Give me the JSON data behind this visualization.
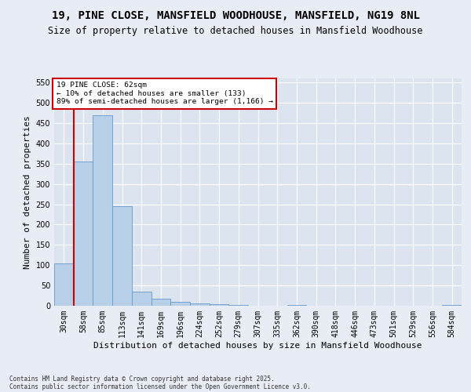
{
  "title": "19, PINE CLOSE, MANSFIELD WOODHOUSE, MANSFIELD, NG19 8NL",
  "subtitle": "Size of property relative to detached houses in Mansfield Woodhouse",
  "xlabel": "Distribution of detached houses by size in Mansfield Woodhouse",
  "ylabel": "Number of detached properties",
  "categories": [
    "30sqm",
    "58sqm",
    "85sqm",
    "113sqm",
    "141sqm",
    "169sqm",
    "196sqm",
    "224sqm",
    "252sqm",
    "279sqm",
    "307sqm",
    "335sqm",
    "362sqm",
    "390sqm",
    "418sqm",
    "446sqm",
    "473sqm",
    "501sqm",
    "529sqm",
    "556sqm",
    "584sqm"
  ],
  "values": [
    105,
    355,
    470,
    245,
    35,
    18,
    10,
    5,
    3,
    1,
    0,
    0,
    1,
    0,
    0,
    0,
    0,
    0,
    0,
    0,
    1
  ],
  "bar_color": "#b8cfe8",
  "bar_edge_color": "#6699cc",
  "vline_x": 0.5,
  "vline_color": "#cc0000",
  "annotation_line1": "19 PINE CLOSE: 62sqm",
  "annotation_line2": "← 10% of detached houses are smaller (133)",
  "annotation_line3": "89% of semi-detached houses are larger (1,166) →",
  "annotation_box_edge_color": "#cc0000",
  "ylim": [
    0,
    560
  ],
  "yticks": [
    0,
    50,
    100,
    150,
    200,
    250,
    300,
    350,
    400,
    450,
    500,
    550
  ],
  "footer_line1": "Contains HM Land Registry data © Crown copyright and database right 2025.",
  "footer_line2": "Contains public sector information licensed under the Open Government Licence v3.0.",
  "bg_color": "#e8edf5",
  "plot_bg_color": "#dce4f0",
  "grid_color": "#ffffff",
  "title_fontsize": 10,
  "subtitle_fontsize": 8.5,
  "axis_label_fontsize": 8,
  "tick_fontsize": 7,
  "annotation_fontsize": 6.8,
  "footer_fontsize": 5.5
}
